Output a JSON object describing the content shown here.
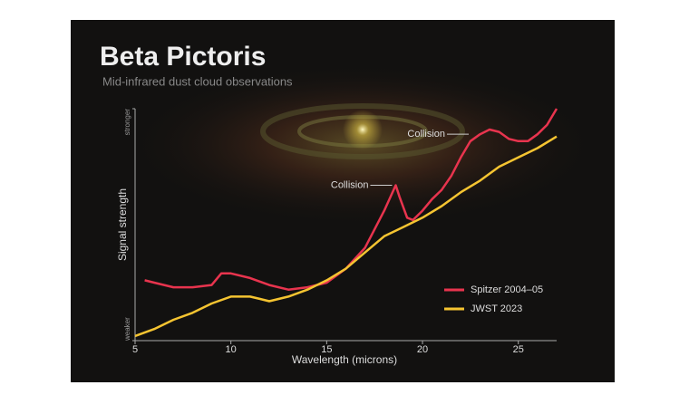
{
  "chart_data": {
    "type": "line",
    "title": "Beta Pictoris",
    "subtitle": "Mid-infrared dust cloud observations",
    "x_label": "Wavelength (microns)",
    "y_label": "Signal strength",
    "xlim": [
      5,
      27
    ],
    "xticks": [
      5,
      10,
      15,
      20,
      25
    ],
    "ylim": [
      0,
      100
    ],
    "yticks": [
      {
        "value": 0,
        "label": "weaker"
      },
      {
        "value": 100,
        "label": "stronger"
      }
    ],
    "legend": "lower right",
    "series": [
      {
        "name": "Spitzer 2004–05",
        "color": "#e8344e",
        "x": [
          5.5,
          6,
          7,
          8,
          9,
          9.5,
          10,
          11,
          12,
          13,
          14,
          15,
          16,
          17,
          17.5,
          18,
          18.6,
          18.8,
          19.2,
          19.5,
          20,
          20.5,
          21,
          21.5,
          22,
          22.5,
          23,
          23.5,
          24,
          24.5,
          25,
          25.5,
          26,
          26.5,
          27
        ],
        "values": [
          26,
          25,
          23,
          23,
          24,
          29,
          29,
          27,
          24,
          22,
          23,
          25,
          31,
          40,
          48,
          56,
          67,
          62,
          53,
          52,
          56,
          61,
          65,
          71,
          79,
          86,
          89,
          91,
          90,
          87,
          86,
          86,
          89,
          93,
          100
        ]
      },
      {
        "name": "JWST 2023",
        "color": "#f5c431",
        "x": [
          5,
          6,
          7,
          8,
          9,
          10,
          11,
          11.5,
          12,
          13,
          14,
          15,
          16,
          17,
          18,
          19,
          20,
          21,
          22,
          23,
          24,
          25,
          26,
          27
        ],
        "values": [
          2,
          5,
          9,
          12,
          16,
          19,
          19,
          18,
          17,
          19,
          22,
          26,
          31,
          38,
          45,
          49,
          53,
          58,
          64,
          69,
          75,
          79,
          83,
          88
        ]
      }
    ],
    "annotations": [
      {
        "text": "Collision",
        "x": 18.6,
        "y": 67
      },
      {
        "text": "Collision",
        "x": 22.6,
        "y": 89
      }
    ]
  }
}
